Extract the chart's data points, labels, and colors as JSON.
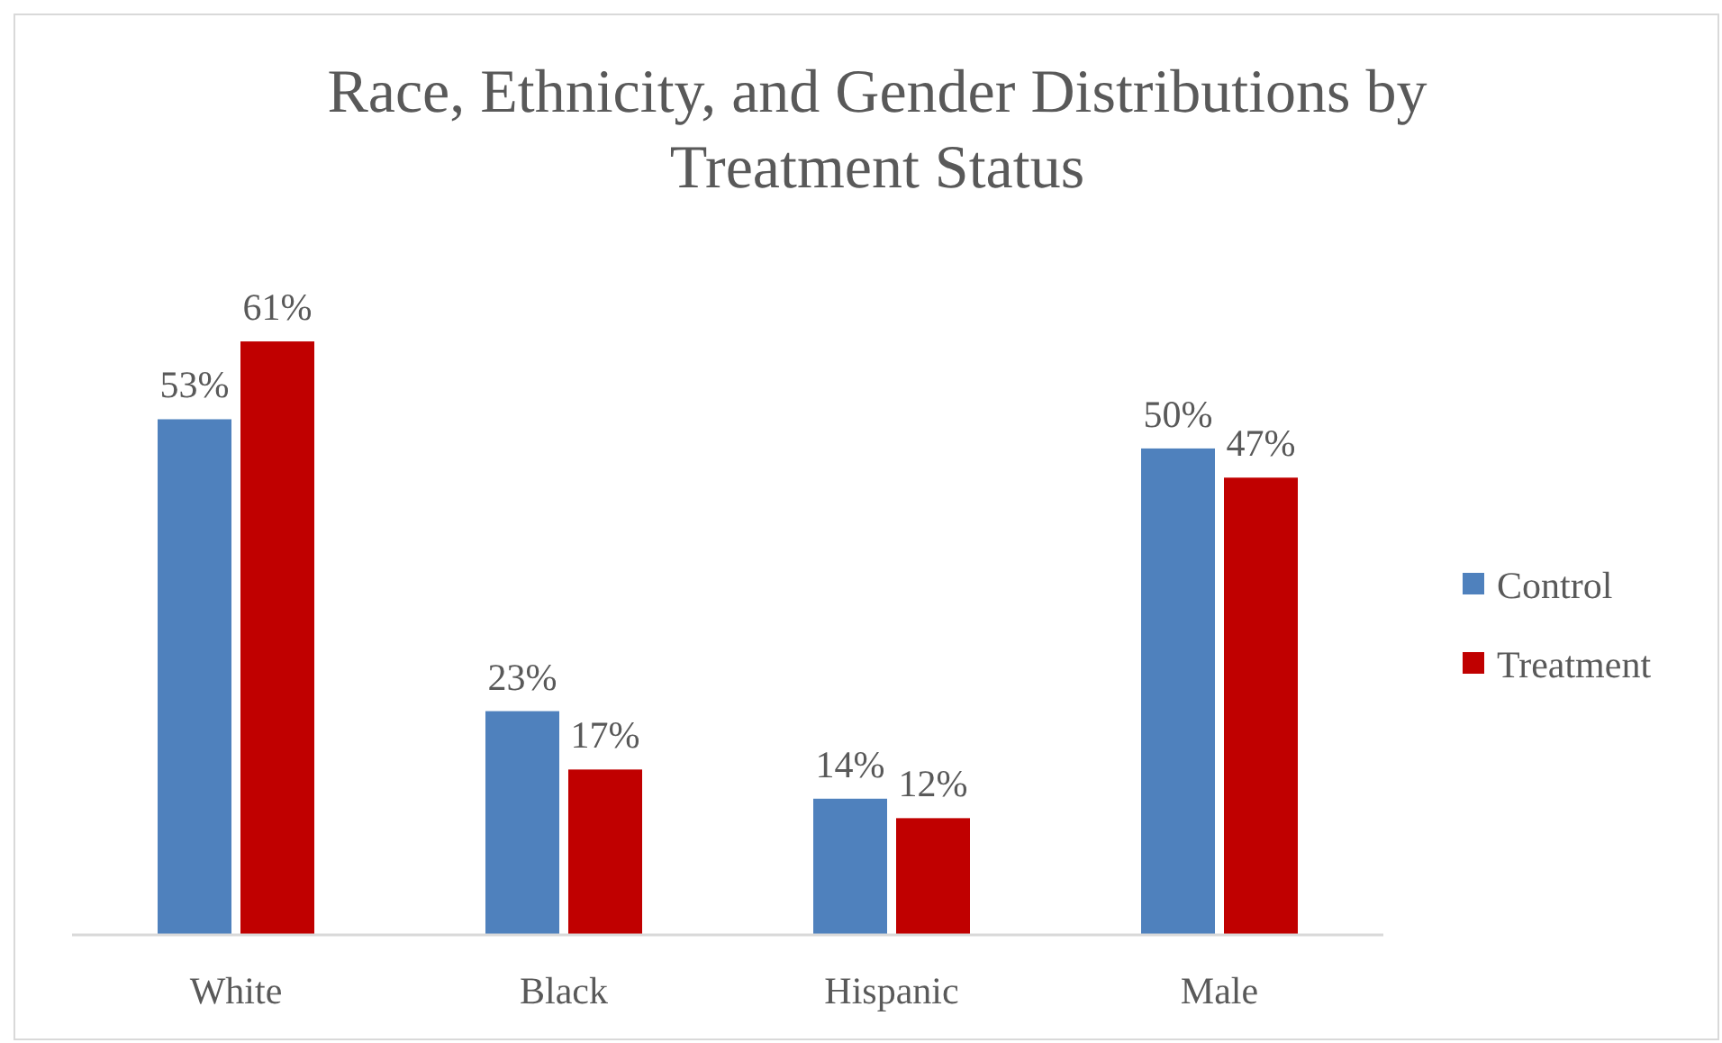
{
  "chart_data": {
    "type": "bar",
    "title": "Race, Ethnicity, and Gender Distributions by Treatment Status",
    "categories": [
      "White",
      "Black",
      "Hispanic",
      "Male"
    ],
    "series": [
      {
        "name": "Control",
        "color": "#4f81bd",
        "values": [
          53,
          23,
          14,
          50
        ],
        "value_labels": [
          "53%",
          "23%",
          "14%",
          "50%"
        ]
      },
      {
        "name": "Treatment",
        "color": "#c00000",
        "values": [
          61,
          17,
          12,
          47
        ],
        "value_labels": [
          "61%",
          "17%",
          "12%",
          "47%"
        ]
      }
    ],
    "legend": "right",
    "grid": false
  }
}
